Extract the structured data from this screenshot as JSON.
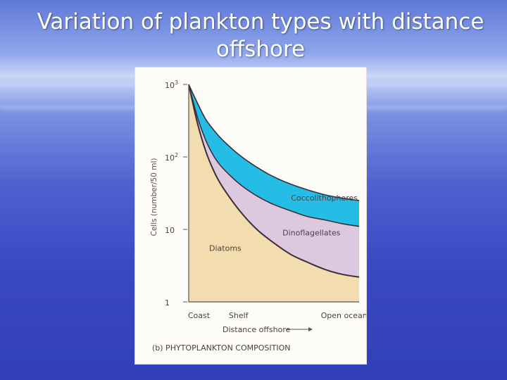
{
  "slide": {
    "title": "Variation of plankton types with distance offshore"
  },
  "colors": {
    "diatoms": "#f3dcae",
    "dinoflagellates": "#ddc9df",
    "coccolithophores": "#25bde6",
    "curve": "#3b2e38",
    "axis": "#5b5350"
  },
  "chart_data": {
    "type": "area",
    "title": "",
    "caption": "(b) PHYTOPLANKTON COMPOSITION",
    "ylabel": "Cells (number/50 ml)",
    "xlabel": "Distance offshore",
    "yscale": "log",
    "ylim": [
      1,
      1000
    ],
    "yticks": [
      {
        "value": 1,
        "label": "1"
      },
      {
        "value": 10,
        "label": "10"
      },
      {
        "value": 100,
        "label": "10",
        "sup": "2"
      },
      {
        "value": 1000,
        "label": "10",
        "sup": "3"
      }
    ],
    "xlim": [
      0,
      1
    ],
    "xticks": [
      {
        "value": 0.02,
        "label": "Coast"
      },
      {
        "value": 0.26,
        "label": "Shelf"
      },
      {
        "value": 0.8,
        "label": "Open ocean"
      }
    ],
    "series": [
      {
        "name": "Diatoms",
        "x": [
          0,
          0.05,
          0.1,
          0.15,
          0.2,
          0.3,
          0.4,
          0.5,
          0.6,
          0.7,
          0.8,
          0.9,
          1.0
        ],
        "y": [
          1000,
          300,
          120,
          62,
          38,
          18,
          10,
          6.5,
          4.5,
          3.5,
          2.8,
          2.4,
          2.2
        ]
      },
      {
        "name": "Dinoflagellates",
        "x": [
          0,
          0.05,
          0.1,
          0.15,
          0.2,
          0.3,
          0.4,
          0.5,
          0.6,
          0.7,
          0.8,
          0.9,
          1.0
        ],
        "y": [
          1000,
          360,
          170,
          100,
          70,
          42,
          29,
          22,
          18,
          15,
          13.5,
          12,
          11
        ]
      },
      {
        "name": "Coccolithophores",
        "x": [
          0,
          0.05,
          0.1,
          0.15,
          0.2,
          0.3,
          0.4,
          0.5,
          0.6,
          0.7,
          0.8,
          0.9,
          1.0
        ],
        "y": [
          1000,
          560,
          330,
          230,
          170,
          105,
          72,
          53,
          42,
          35,
          30,
          27,
          25
        ]
      }
    ]
  }
}
